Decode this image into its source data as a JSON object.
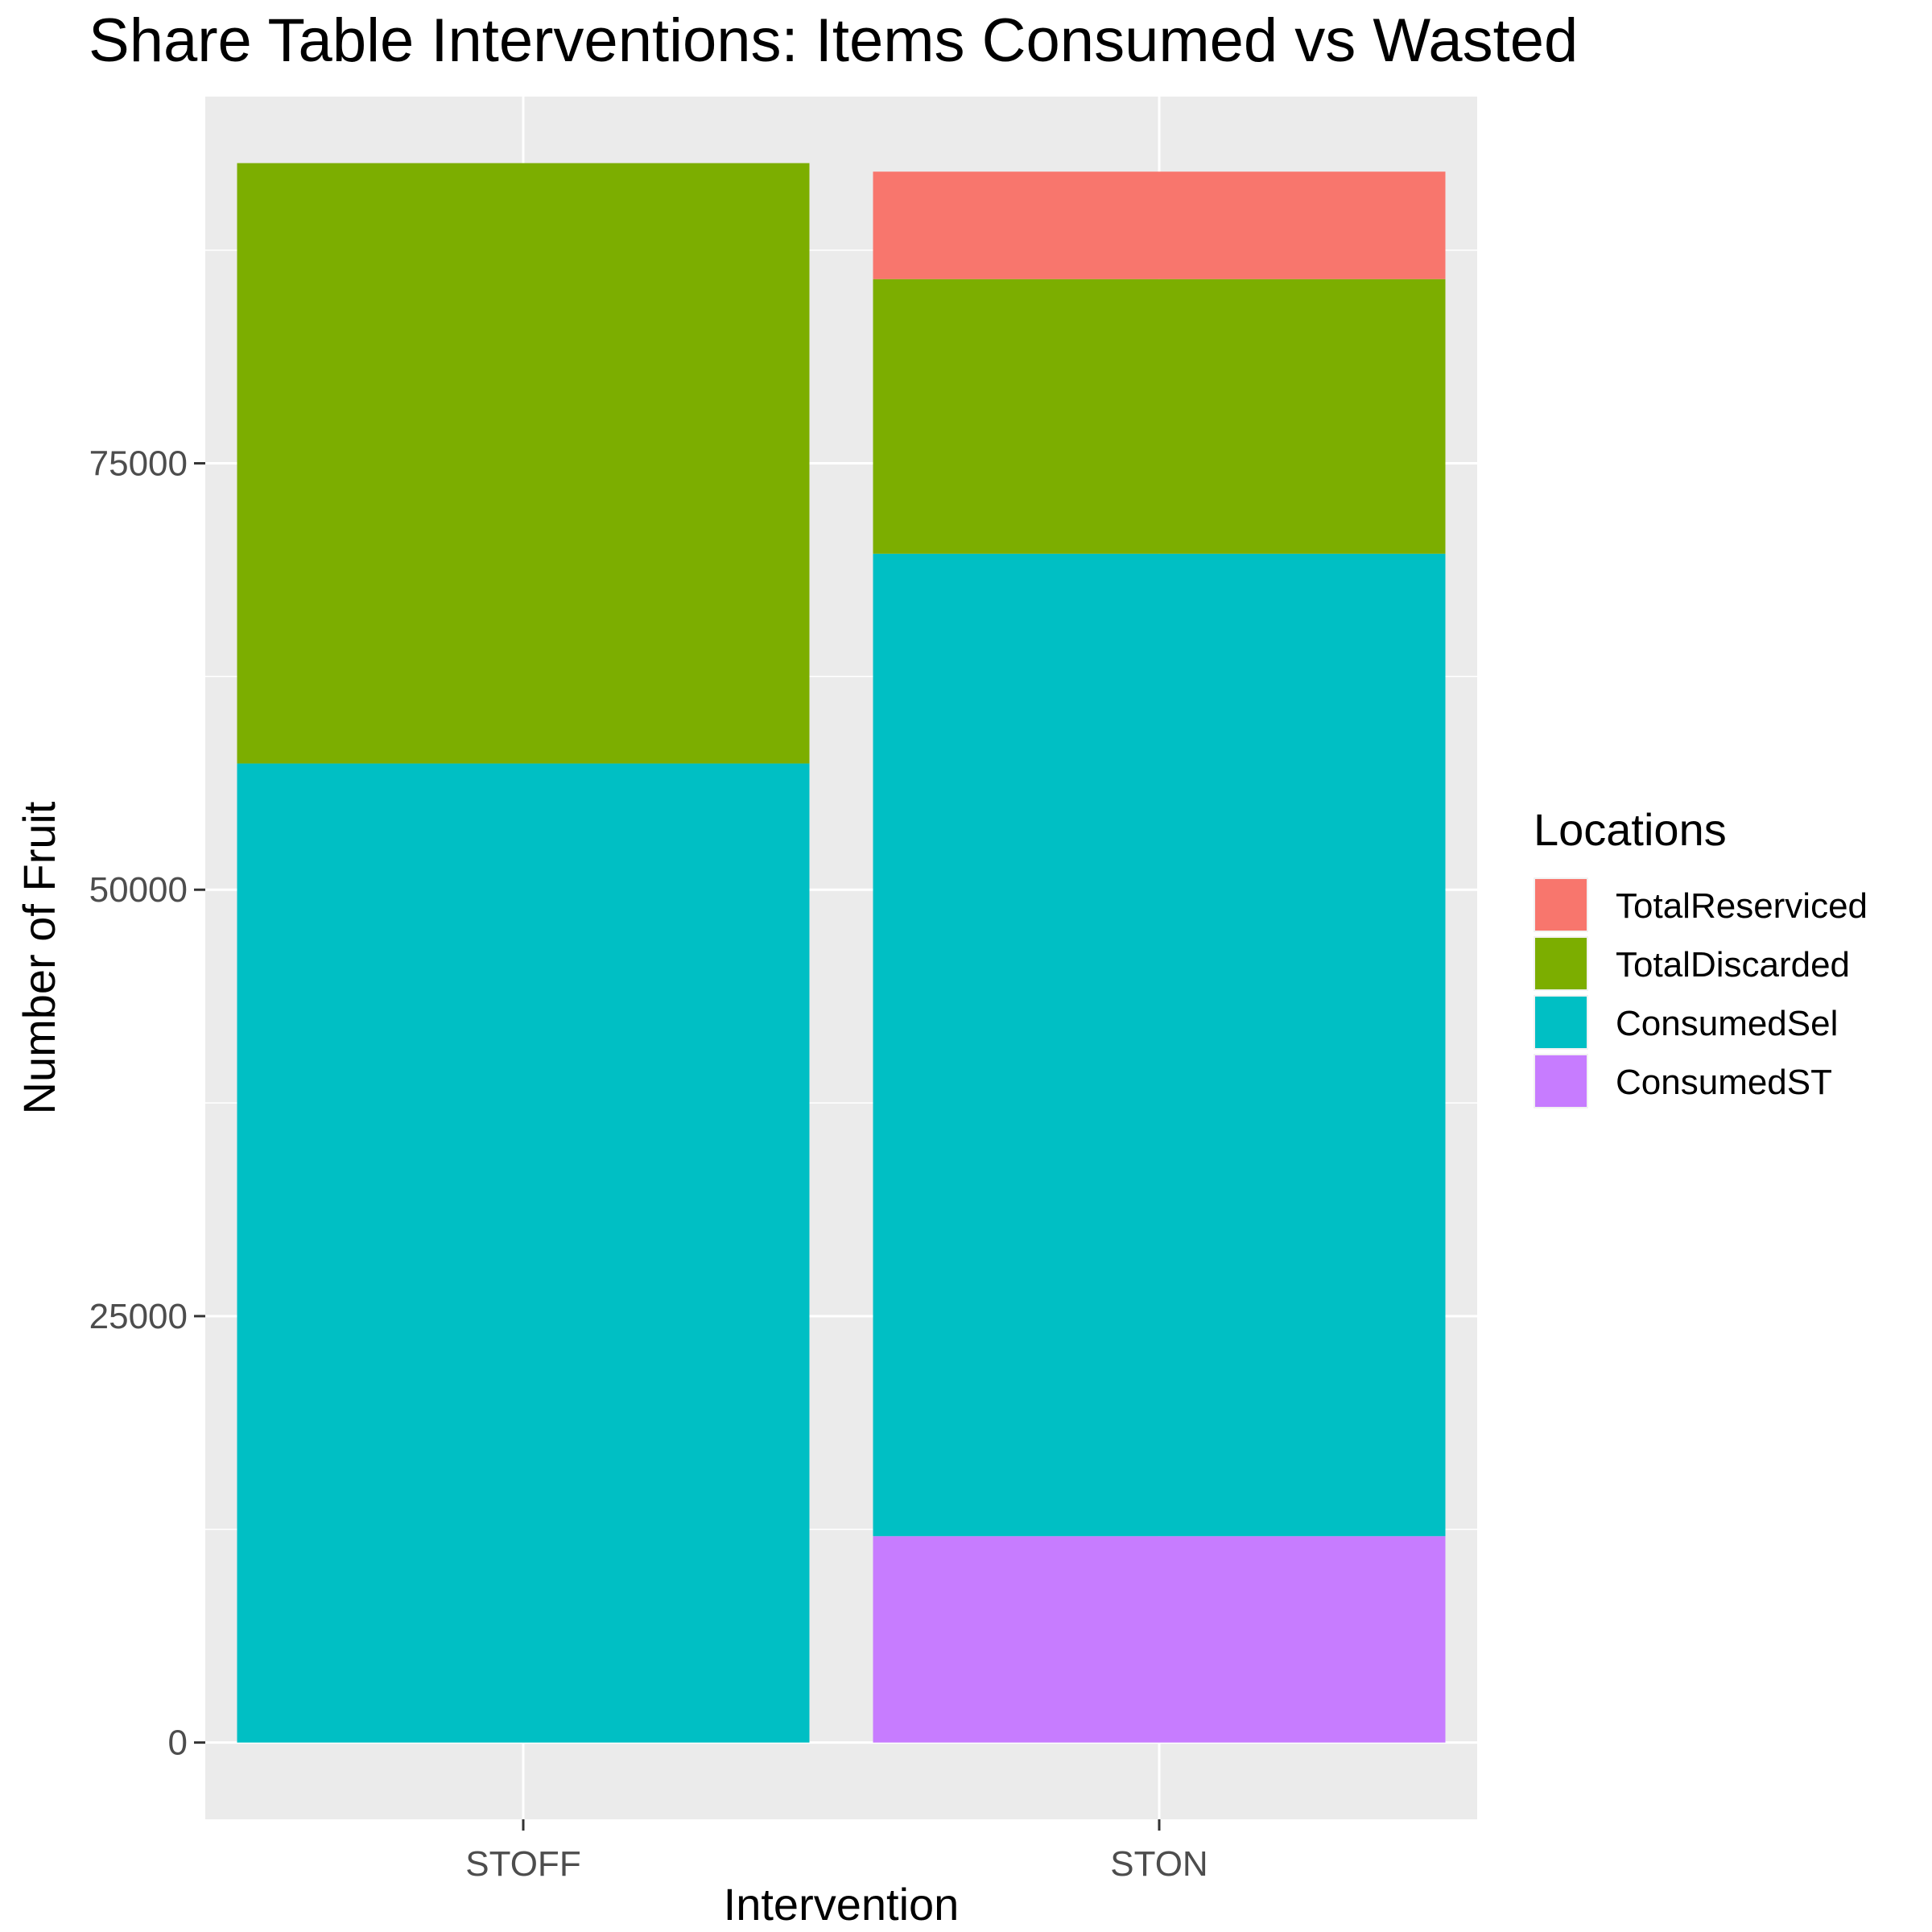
{
  "chart_data": {
    "type": "bar",
    "stacked": true,
    "title": "Share Table Interventions: Items Consumed vs Wasted",
    "xlabel": "Intervention",
    "ylabel": "Number of Fruit",
    "categories": [
      "STOFF",
      "STON"
    ],
    "y_ticks": [
      "0",
      "25000",
      "50000",
      "75000"
    ],
    "ylim": [
      -4500,
      96500
    ],
    "grid": true,
    "legend_title": "Locations",
    "legend_position": "right",
    "series": [
      {
        "name": "TotalReserviced",
        "color": "#F8766D",
        "values": [
          0,
          6300
        ]
      },
      {
        "name": "TotalDiscarded",
        "color": "#7CAE00",
        "values": [
          35200,
          16100
        ]
      },
      {
        "name": "ConsumedSel",
        "color": "#00BFC4",
        "values": [
          57400,
          57600
        ]
      },
      {
        "name": "ConsumedST",
        "color": "#C77CFF",
        "values": [
          0,
          12100
        ]
      }
    ],
    "stack_order_bottom_to_top": [
      "ConsumedST",
      "ConsumedSel",
      "TotalDiscarded",
      "TotalReserviced"
    ]
  }
}
